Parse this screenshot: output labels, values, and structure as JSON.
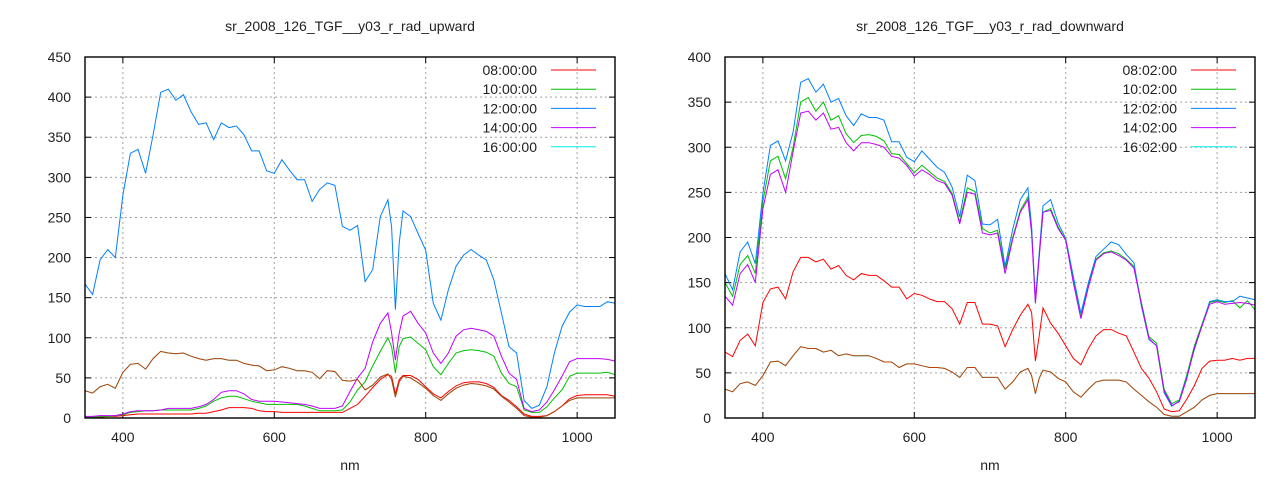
{
  "chart_data": [
    {
      "type": "line",
      "title": "sr_2008_126_TGF__y03_r_rad_upward",
      "xlabel": "nm",
      "ylabel": "",
      "xlim": [
        350,
        1050
      ],
      "ylim": [
        0,
        450
      ],
      "xticks": [
        400,
        600,
        800,
        1000
      ],
      "yticks": [
        0,
        50,
        100,
        150,
        200,
        250,
        300,
        350,
        400,
        450
      ],
      "grid": true,
      "legend_position": "top-right",
      "x": [
        350,
        360,
        370,
        380,
        390,
        400,
        410,
        420,
        430,
        440,
        450,
        460,
        470,
        480,
        490,
        500,
        510,
        520,
        530,
        540,
        550,
        560,
        570,
        580,
        590,
        600,
        610,
        620,
        630,
        640,
        650,
        660,
        670,
        680,
        690,
        700,
        710,
        720,
        730,
        740,
        750,
        755,
        760,
        765,
        770,
        780,
        790,
        800,
        810,
        820,
        830,
        840,
        850,
        860,
        870,
        880,
        890,
        900,
        910,
        920,
        930,
        940,
        950,
        960,
        970,
        980,
        990,
        1000,
        1010,
        1020,
        1030,
        1040,
        1050
      ],
      "series": [
        {
          "name": "08:00:00",
          "color": "#ff0000",
          "values": [
            1,
            1,
            1,
            2,
            2,
            3,
            4,
            5,
            5,
            5,
            5,
            5,
            5,
            5,
            5,
            6,
            6,
            8,
            10,
            13,
            13,
            13,
            12,
            9,
            8,
            8,
            7,
            7,
            7,
            7,
            7,
            7,
            7,
            7,
            7,
            12,
            17,
            27,
            38,
            48,
            54,
            52,
            30,
            48,
            53,
            53,
            48,
            39,
            30,
            25,
            33,
            40,
            44,
            45,
            45,
            43,
            38,
            28,
            22,
            14,
            5,
            2,
            2,
            3,
            8,
            15,
            24,
            28,
            29,
            29,
            29,
            29,
            27
          ]
        },
        {
          "name": "10:00:00",
          "color": "#00c000",
          "values": [
            1,
            1,
            2,
            2,
            3,
            4,
            7,
            8,
            9,
            9,
            10,
            10,
            10,
            10,
            10,
            12,
            15,
            21,
            25,
            27,
            27,
            24,
            21,
            19,
            17,
            17,
            17,
            17,
            17,
            15,
            12,
            9,
            9,
            9,
            10,
            20,
            35,
            45,
            65,
            83,
            100,
            89,
            56,
            89,
            99,
            101,
            93,
            85,
            64,
            54,
            68,
            81,
            84,
            85,
            84,
            82,
            77,
            56,
            43,
            39,
            10,
            7,
            7,
            14,
            25,
            35,
            52,
            56,
            56,
            56,
            56,
            57,
            54
          ]
        },
        {
          "name": "12:00:00",
          "color": "#0080ff",
          "values": [
            167,
            154,
            197,
            210,
            200,
            278,
            330,
            335,
            305,
            353,
            406,
            410,
            396,
            403,
            382,
            366,
            368,
            347,
            368,
            362,
            364,
            353,
            333,
            333,
            308,
            305,
            322,
            309,
            297,
            297,
            270,
            285,
            293,
            290,
            239,
            234,
            240,
            170,
            185,
            251,
            272,
            238,
            135,
            218,
            258,
            251,
            230,
            209,
            143,
            122,
            160,
            189,
            203,
            210,
            203,
            197,
            172,
            131,
            89,
            81,
            22,
            12,
            16,
            39,
            81,
            114,
            132,
            141,
            139,
            139,
            139,
            145,
            143
          ]
        },
        {
          "name": "14:00:00",
          "color": "#c000ff",
          "values": [
            2,
            2,
            3,
            3,
            3,
            5,
            8,
            9,
            9,
            9,
            10,
            12,
            12,
            12,
            12,
            14,
            17,
            23,
            32,
            34,
            34,
            30,
            23,
            21,
            21,
            21,
            20,
            19,
            18,
            17,
            15,
            12,
            12,
            12,
            15,
            33,
            50,
            62,
            95,
            118,
            131,
            106,
            72,
            106,
            127,
            133,
            118,
            106,
            81,
            68,
            81,
            102,
            110,
            112,
            110,
            108,
            102,
            77,
            56,
            48,
            12,
            8,
            10,
            20,
            35,
            52,
            70,
            74,
            74,
            74,
            74,
            73,
            71
          ]
        },
        {
          "name": "16:00:00",
          "color": "#00eeee",
          "values": [
            34,
            31,
            39,
            42,
            37,
            57,
            67,
            68,
            61,
            74,
            83,
            81,
            80,
            81,
            77,
            74,
            72,
            74,
            74,
            72,
            72,
            68,
            66,
            65,
            59,
            60,
            64,
            62,
            59,
            59,
            57,
            49,
            59,
            58,
            47,
            46,
            48,
            35,
            41,
            51,
            55,
            48,
            26,
            45,
            52,
            50,
            44,
            37,
            28,
            22,
            30,
            37,
            41,
            43,
            42,
            40,
            36,
            27,
            20,
            12,
            3,
            1,
            1,
            3,
            8,
            15,
            22,
            25,
            25,
            25,
            25,
            25,
            25
          ]
        },
        {
          "name": "",
          "color": "#c04000",
          "values": [
            34,
            31,
            39,
            42,
            37,
            57,
            67,
            68,
            61,
            74,
            83,
            81,
            80,
            81,
            77,
            74,
            72,
            74,
            74,
            72,
            72,
            68,
            66,
            65,
            59,
            60,
            64,
            62,
            59,
            59,
            57,
            49,
            59,
            58,
            47,
            46,
            48,
            35,
            41,
            51,
            55,
            48,
            26,
            45,
            52,
            50,
            44,
            37,
            28,
            22,
            30,
            37,
            41,
            43,
            42,
            40,
            36,
            27,
            20,
            12,
            3,
            1,
            1,
            3,
            8,
            15,
            22,
            25,
            25,
            25,
            25,
            25,
            25
          ]
        }
      ]
    },
    {
      "type": "line",
      "title": "sr_2008_126_TGF__y03_r_rad_downward",
      "xlabel": "nm",
      "ylabel": "",
      "xlim": [
        350,
        1050
      ],
      "ylim": [
        0,
        400
      ],
      "xticks": [
        400,
        600,
        800,
        1000
      ],
      "yticks": [
        0,
        50,
        100,
        150,
        200,
        250,
        300,
        350,
        400
      ],
      "grid": true,
      "legend_position": "top-right",
      "x": [
        350,
        360,
        370,
        380,
        390,
        400,
        410,
        420,
        430,
        440,
        450,
        460,
        470,
        480,
        490,
        500,
        510,
        520,
        530,
        540,
        550,
        560,
        570,
        580,
        590,
        600,
        610,
        620,
        630,
        640,
        650,
        660,
        670,
        680,
        690,
        700,
        710,
        720,
        730,
        740,
        750,
        755,
        760,
        765,
        770,
        780,
        790,
        800,
        810,
        820,
        830,
        840,
        850,
        860,
        870,
        880,
        890,
        900,
        910,
        920,
        930,
        940,
        950,
        960,
        970,
        980,
        990,
        1000,
        1010,
        1020,
        1030,
        1040,
        1050
      ],
      "series": [
        {
          "name": "08:02:00",
          "color": "#ff0000",
          "values": [
            73,
            68,
            86,
            93,
            80,
            128,
            143,
            145,
            132,
            162,
            178,
            178,
            173,
            176,
            165,
            169,
            158,
            153,
            160,
            158,
            158,
            152,
            145,
            145,
            132,
            138,
            136,
            132,
            129,
            129,
            121,
            104,
            128,
            128,
            104,
            104,
            102,
            79,
            98,
            114,
            126,
            117,
            63,
            91,
            122,
            105,
            94,
            80,
            66,
            59,
            77,
            91,
            98,
            98,
            94,
            91,
            73,
            55,
            44,
            29,
            10,
            7,
            8,
            21,
            36,
            55,
            63,
            64,
            64,
            66,
            64,
            66,
            66
          ]
        },
        {
          "name": "10:02:00",
          "color": "#00c000",
          "values": [
            150,
            135,
            170,
            180,
            160,
            240,
            285,
            290,
            265,
            300,
            350,
            355,
            340,
            350,
            330,
            335,
            315,
            305,
            313,
            314,
            312,
            307,
            293,
            292,
            282,
            272,
            280,
            273,
            266,
            262,
            249,
            217,
            255,
            251,
            210,
            205,
            208,
            165,
            200,
            230,
            245,
            210,
            128,
            180,
            228,
            232,
            212,
            197,
            155,
            112,
            148,
            176,
            183,
            185,
            182,
            176,
            168,
            128,
            90,
            83,
            32,
            16,
            20,
            48,
            80,
            104,
            128,
            130,
            128,
            130,
            122,
            130,
            120
          ]
        },
        {
          "name": "12:02:00",
          "color": "#0080ff",
          "values": [
            160,
            142,
            184,
            195,
            171,
            249,
            302,
            307,
            285,
            317,
            372,
            376,
            361,
            370,
            350,
            354,
            335,
            324,
            337,
            333,
            333,
            330,
            306,
            306,
            289,
            284,
            296,
            287,
            278,
            272,
            256,
            223,
            269,
            263,
            215,
            214,
            220,
            168,
            209,
            242,
            255,
            212,
            131,
            183,
            235,
            242,
            216,
            199,
            157,
            116,
            150,
            179,
            187,
            195,
            192,
            181,
            172,
            124,
            87,
            80,
            28,
            13,
            19,
            46,
            76,
            102,
            129,
            131,
            129,
            129,
            135,
            133,
            131
          ]
        },
        {
          "name": "14:02:00",
          "color": "#c000ff",
          "values": [
            135,
            125,
            160,
            170,
            150,
            232,
            270,
            275,
            250,
            295,
            338,
            340,
            330,
            338,
            320,
            322,
            305,
            296,
            305,
            305,
            303,
            300,
            290,
            288,
            280,
            268,
            275,
            270,
            263,
            260,
            247,
            215,
            250,
            248,
            205,
            203,
            205,
            160,
            198,
            228,
            242,
            205,
            127,
            178,
            228,
            230,
            210,
            197,
            150,
            110,
            145,
            175,
            182,
            184,
            180,
            175,
            166,
            126,
            88,
            80,
            30,
            14,
            18,
            44,
            78,
            102,
            126,
            129,
            126,
            127,
            128,
            127,
            125
          ]
        },
        {
          "name": "16:02:00",
          "color": "#00eeee",
          "values": [
            32,
            29,
            38,
            40,
            36,
            47,
            62,
            63,
            58,
            69,
            79,
            77,
            77,
            73,
            75,
            69,
            71,
            69,
            69,
            69,
            66,
            62,
            62,
            56,
            60,
            60,
            58,
            56,
            56,
            55,
            51,
            45,
            56,
            56,
            45,
            45,
            45,
            32,
            40,
            51,
            55,
            47,
            27,
            44,
            53,
            51,
            44,
            40,
            29,
            23,
            32,
            40,
            42,
            42,
            42,
            40,
            32,
            25,
            18,
            12,
            4,
            2,
            2,
            7,
            12,
            20,
            25,
            27,
            27,
            27,
            27,
            27,
            27
          ]
        },
        {
          "name": "",
          "color": "#c04000",
          "values": [
            32,
            29,
            38,
            40,
            36,
            47,
            62,
            63,
            58,
            69,
            79,
            77,
            77,
            73,
            75,
            69,
            71,
            69,
            69,
            69,
            66,
            62,
            62,
            56,
            60,
            60,
            58,
            56,
            56,
            55,
            51,
            45,
            56,
            56,
            45,
            45,
            45,
            32,
            40,
            51,
            55,
            47,
            27,
            44,
            53,
            51,
            44,
            40,
            29,
            23,
            32,
            40,
            42,
            42,
            42,
            40,
            32,
            25,
            18,
            12,
            4,
            2,
            2,
            7,
            12,
            20,
            25,
            27,
            27,
            27,
            27,
            27,
            27
          ]
        }
      ]
    }
  ]
}
